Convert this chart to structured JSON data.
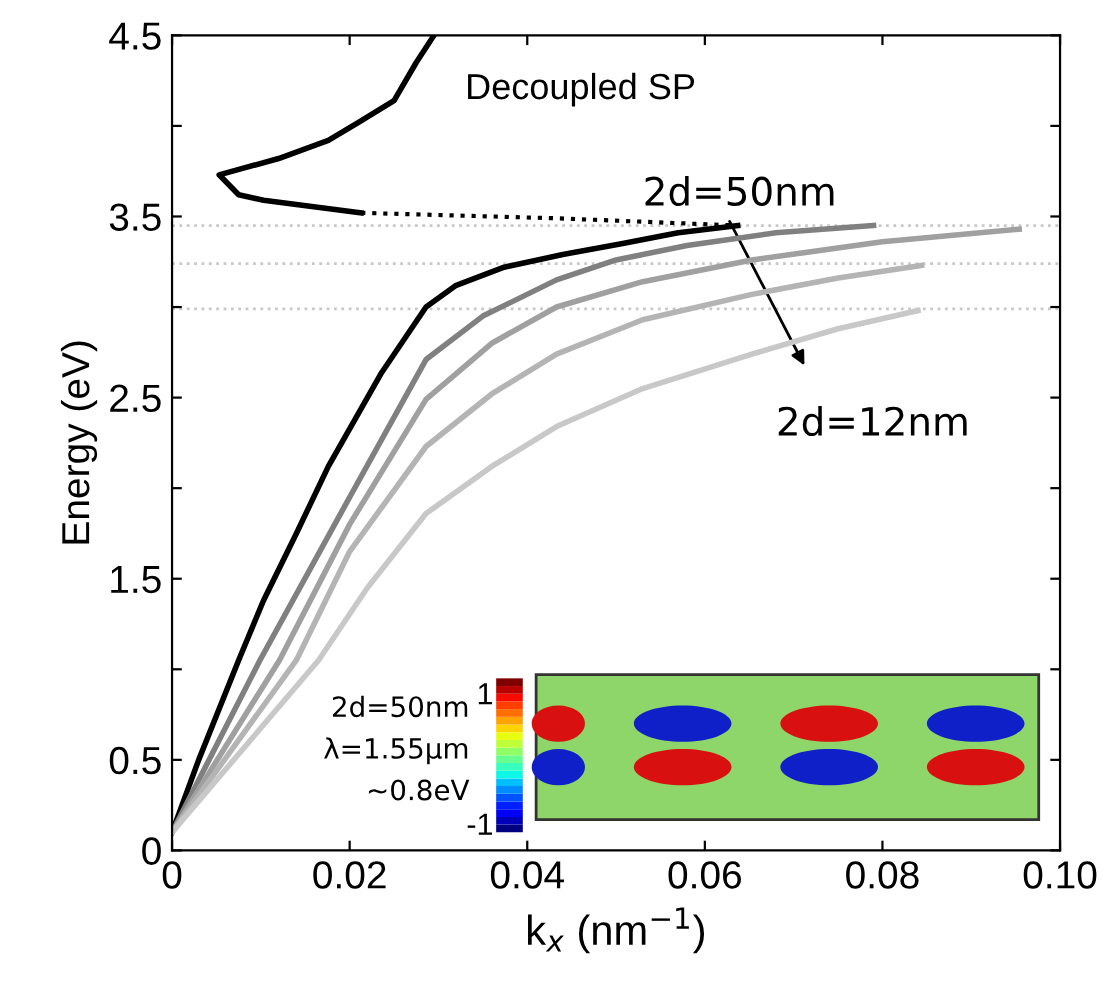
{
  "chart_data": {
    "type": "line",
    "xlabel": "k$_{x}$ (nm$^{−1}$)",
    "ylabel": "Energy (eV)",
    "xlim": [
      0,
      0.1
    ],
    "xticks": [
      0,
      0.02,
      0.04,
      0.06,
      0.08,
      {
        "value": 0.1,
        "label": "0.10"
      }
    ],
    "ylim": [
      0,
      4.5
    ],
    "yticks": [
      0,
      0.5,
      {
        "value": 1,
        "label": null
      },
      1.5,
      {
        "value": 2,
        "label": null
      },
      2.5,
      {
        "value": 3,
        "label": null
      },
      3.5,
      {
        "value": 4,
        "label": null
      },
      4.5
    ],
    "grid": false,
    "legend": false,
    "marker": "none",
    "series": [
      {
        "color": "#000000",
        "line_style": "solid",
        "x": [
          0,
          0.003,
          0.0075,
          0.0103,
          0.014,
          0.0176,
          0.0235,
          0.0286,
          0.032,
          0.0374,
          0.044,
          0.0506,
          0.057,
          0.0637
        ],
        "values": [
          0.1,
          0.5,
          1.05,
          1.38,
          1.75,
          2.12,
          2.63,
          3.0,
          3.12,
          3.22,
          3.29,
          3.35,
          3.41,
          3.45
        ]
      },
      {
        "color": "#000000",
        "line_style": "solid",
        "x": [
          0.0295,
          0.0275,
          0.025,
          0.021,
          0.0176,
          0.012,
          0.0053,
          0.0075,
          0.0103,
          0.0213
        ],
        "values": [
          4.5,
          4.35,
          4.14,
          4.02,
          3.92,
          3.82,
          3.73,
          3.62,
          3.59,
          3.52
        ]
      },
      {
        "color": "#000000",
        "line_style": "dotted",
        "x": [
          0.0213,
          0.0433,
          0.0637
        ],
        "values": [
          3.52,
          3.49,
          3.45
        ]
      },
      {
        "color": "#808080",
        "line_style": "solid",
        "x": [
          0,
          0.0099,
          0.02,
          0.0286,
          0.035,
          0.0433,
          0.05,
          0.058,
          0.068,
          0.079
        ],
        "values": [
          0.1,
          1.05,
          1.95,
          2.71,
          2.95,
          3.15,
          3.26,
          3.34,
          3.41,
          3.45
        ]
      },
      {
        "color": "#a0a0a0",
        "line_style": "solid",
        "x": [
          0,
          0.0121,
          0.02,
          0.0286,
          0.036,
          0.0433,
          0.053,
          0.0653,
          0.08,
          0.0954
        ],
        "values": [
          0.1,
          1.05,
          1.8,
          2.49,
          2.8,
          3.0,
          3.14,
          3.26,
          3.36,
          3.43
        ]
      },
      {
        "color": "#b4b4b4",
        "line_style": "solid",
        "x": [
          0,
          0.014,
          0.02,
          0.0286,
          0.036,
          0.0433,
          0.053,
          0.0653,
          0.075,
          0.0844
        ],
        "values": [
          0.1,
          1.05,
          1.65,
          2.23,
          2.52,
          2.74,
          2.93,
          3.07,
          3.16,
          3.23
        ]
      },
      {
        "color": "#c8c8c8",
        "line_style": "solid",
        "x": [
          0,
          0.0165,
          0.022,
          0.0286,
          0.036,
          0.0433,
          0.053,
          0.0653,
          0.075,
          0.084
        ],
        "values": [
          0.1,
          1.05,
          1.45,
          1.86,
          2.12,
          2.34,
          2.55,
          2.74,
          2.88,
          2.98
        ]
      }
    ],
    "ref_lines": [
      {
        "axis": "y",
        "value": 3.45,
        "color": "#c8c8c8",
        "line_style": "dotted"
      },
      {
        "axis": "y",
        "value": 3.24,
        "color": "#c8c8c8",
        "line_style": "dotted"
      },
      {
        "axis": "y",
        "value": 2.99,
        "color": "#c8c8c8",
        "line_style": "dotted"
      }
    ],
    "annotations": [
      "Decoupled SP",
      "2d=50nm",
      "2d=12nm",
      "2d=50nm",
      "λ=1.55μm",
      "~0.8eV",
      "1",
      "-1"
    ]
  }
}
